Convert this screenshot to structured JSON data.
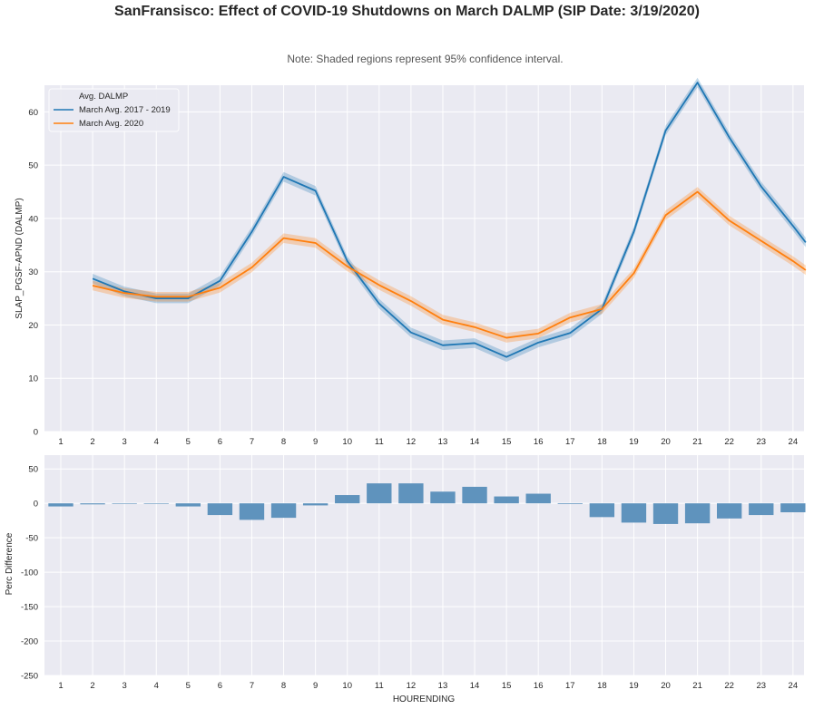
{
  "title": "SanFransisco: Effect of COVID-19 Shutdowns on March DALMP (SIP Date: 3/19/2020)",
  "note": "Note: Shaded regions represent 95% confidence interval.",
  "colors": {
    "background": "#eaeaf2",
    "grid": "#ffffff",
    "series1": "#1f77b4",
    "series2": "#ff7f0e",
    "bar": "#5f93bd"
  },
  "chart_data": [
    {
      "type": "line",
      "title": "",
      "xlabel": "",
      "ylabel": "SLAP_PGSF-APND (DALMP)",
      "x": [
        2,
        3,
        4,
        5,
        6,
        7,
        8,
        9,
        10,
        11,
        12,
        13,
        14,
        15,
        16,
        17,
        18,
        19,
        20,
        21,
        22,
        23,
        24,
        24.4
      ],
      "xticks": [
        "1",
        "2",
        "3",
        "4",
        "5",
        "6",
        "7",
        "8",
        "9",
        "10",
        "11",
        "12",
        "13",
        "14",
        "15",
        "16",
        "17",
        "18",
        "19",
        "20",
        "21",
        "22",
        "23",
        "24"
      ],
      "yticks": [
        "0",
        "10",
        "20",
        "30",
        "40",
        "50",
        "60"
      ],
      "ylim": [
        0,
        65
      ],
      "legend": {
        "title": "Avg. DALMP",
        "position": "upper-left"
      },
      "series": [
        {
          "name": "March Avg. 2017 - 2019",
          "values": [
            28.7,
            26.3,
            25.0,
            25.0,
            28.3,
            37.5,
            47.8,
            45.2,
            32.0,
            24.0,
            18.6,
            16.2,
            16.6,
            14.0,
            16.7,
            18.5,
            23.0,
            37.5,
            56.5,
            65.5,
            55.2,
            46.0,
            38.6,
            35.5
          ],
          "ci": 0.9
        },
        {
          "name": "March Avg. 2020",
          "values": [
            27.4,
            26.0,
            25.3,
            25.3,
            27.0,
            30.8,
            36.3,
            35.4,
            31.0,
            27.5,
            24.5,
            21.0,
            19.6,
            17.6,
            18.4,
            21.4,
            23.0,
            29.7,
            40.6,
            45.0,
            39.6,
            35.8,
            32.0,
            30.3
          ],
          "ci": 0.9
        }
      ]
    },
    {
      "type": "bar",
      "title": "",
      "xlabel": "HOURENDING",
      "ylabel": "Perc Difference",
      "categories": [
        "1",
        "2",
        "3",
        "4",
        "5",
        "6",
        "7",
        "8",
        "9",
        "10",
        "11",
        "12",
        "13",
        "14",
        "15",
        "16",
        "17",
        "18",
        "19",
        "20",
        "21",
        "22",
        "23",
        "24"
      ],
      "values": [
        -4.5,
        -1.5,
        -0.5,
        -0.5,
        -4.5,
        -17,
        -24,
        -21,
        -3,
        12,
        29,
        29,
        17,
        24,
        10,
        14,
        -1,
        -20,
        -28,
        -30,
        -29,
        -22,
        -17,
        -13
      ],
      "yticks": [
        "50",
        "0",
        "-50",
        "-100",
        "-150",
        "-200",
        "-250"
      ],
      "ylim": [
        -250,
        70
      ]
    }
  ]
}
